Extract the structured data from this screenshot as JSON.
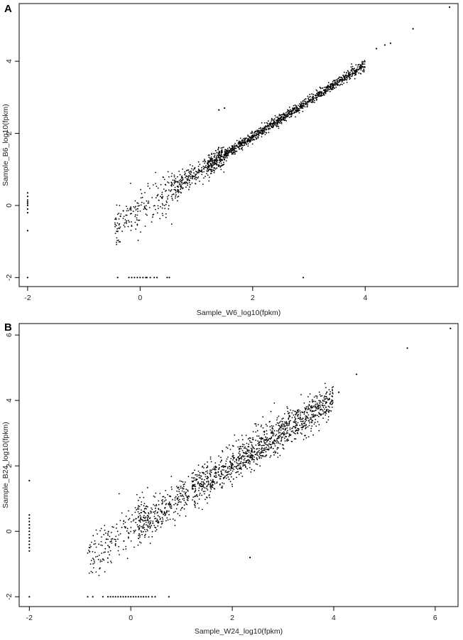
{
  "chart_data": [
    {
      "panel": "A",
      "type": "scatter",
      "title": "",
      "xlabel": "Sample_W6_log10(fpkm)",
      "ylabel": "Sample_B6_log10(fpkm)",
      "xlim": [
        -2.15,
        5.65
      ],
      "ylim": [
        -2.25,
        5.6
      ],
      "xticks": [
        -2,
        0,
        2,
        4
      ],
      "yticks": [
        -2,
        0,
        2,
        4
      ],
      "grid": false,
      "point_color": "#000000",
      "main_cloud": {
        "x_range": [
          -0.45,
          4.0
        ],
        "slope": 1.0,
        "intercept": -0.1,
        "spread": "narrow at high x, wider at low x",
        "approx_points": 1600
      },
      "points": [
        {
          "x": 5.5,
          "y": 5.5
        },
        {
          "x": 4.85,
          "y": 4.9
        },
        {
          "x": 4.45,
          "y": 4.5
        },
        {
          "x": 4.35,
          "y": 4.45
        },
        {
          "x": 4.2,
          "y": 4.35
        },
        {
          "x": 1.4,
          "y": 2.65
        },
        {
          "x": 1.5,
          "y": 2.7
        },
        {
          "x": -0.4,
          "y": -0.72
        },
        {
          "x": -0.35,
          "y": -0.3
        },
        {
          "x": -0.3,
          "y": -0.15
        },
        {
          "x": -2,
          "y": 0.35
        },
        {
          "x": -2,
          "y": 0.25
        },
        {
          "x": -2,
          "y": 0.15
        },
        {
          "x": -2,
          "y": 0.1
        },
        {
          "x": -2,
          "y": 0.05
        },
        {
          "x": -2,
          "y": 0.0
        },
        {
          "x": -2,
          "y": -0.1
        },
        {
          "x": -2,
          "y": -0.2
        },
        {
          "x": -2,
          "y": -0.7
        },
        {
          "x": -2,
          "y": -2
        },
        {
          "x": -0.4,
          "y": -2
        },
        {
          "x": -0.2,
          "y": -2
        },
        {
          "x": -0.15,
          "y": -2
        },
        {
          "x": -0.1,
          "y": -2
        },
        {
          "x": -0.05,
          "y": -2
        },
        {
          "x": 0.0,
          "y": -2
        },
        {
          "x": 0.05,
          "y": -2
        },
        {
          "x": 0.1,
          "y": -2
        },
        {
          "x": 0.12,
          "y": -2
        },
        {
          "x": 0.18,
          "y": -2
        },
        {
          "x": 0.25,
          "y": -2
        },
        {
          "x": 0.3,
          "y": -2
        },
        {
          "x": 0.48,
          "y": -2
        },
        {
          "x": 0.52,
          "y": -2
        },
        {
          "x": 2.9,
          "y": -2
        }
      ]
    },
    {
      "panel": "B",
      "type": "scatter",
      "title": "",
      "xlabel": "Sample_W24_log10(fpkm)",
      "ylabel": "Sample_B24_log10(fpkm)",
      "xlim": [
        -2.2,
        6.45
      ],
      "ylim": [
        -2.3,
        6.35
      ],
      "xticks": [
        -2,
        0,
        2,
        4,
        6
      ],
      "yticks": [
        -2,
        0,
        2,
        4,
        6
      ],
      "grid": false,
      "point_color": "#000000",
      "main_cloud": {
        "x_range": [
          -0.85,
          4.0
        ],
        "slope": 1.0,
        "intercept": 0.05,
        "spread": "wide, roughly uniform",
        "approx_points": 1600
      },
      "points": [
        {
          "x": 6.3,
          "y": 6.2
        },
        {
          "x": 5.45,
          "y": 5.6
        },
        {
          "x": 4.45,
          "y": 4.8
        },
        {
          "x": 4.1,
          "y": 4.25
        },
        {
          "x": 3.85,
          "y": 3.95
        },
        {
          "x": 2.35,
          "y": -0.8
        },
        {
          "x": -0.55,
          "y": -0.85
        },
        {
          "x": -2,
          "y": 1.55
        },
        {
          "x": -2,
          "y": 0.5
        },
        {
          "x": -2,
          "y": 0.4
        },
        {
          "x": -2,
          "y": 0.3
        },
        {
          "x": -2,
          "y": 0.2
        },
        {
          "x": -2,
          "y": 0.1
        },
        {
          "x": -2,
          "y": 0.0
        },
        {
          "x": -2,
          "y": -0.1
        },
        {
          "x": -2,
          "y": -0.2
        },
        {
          "x": -2,
          "y": -0.3
        },
        {
          "x": -2,
          "y": -0.4
        },
        {
          "x": -2,
          "y": -0.5
        },
        {
          "x": -2,
          "y": -0.6
        },
        {
          "x": -2,
          "y": -2
        },
        {
          "x": -0.85,
          "y": -2
        },
        {
          "x": -0.75,
          "y": -2
        },
        {
          "x": -0.55,
          "y": -2
        },
        {
          "x": -0.45,
          "y": -2
        },
        {
          "x": -0.4,
          "y": -2
        },
        {
          "x": -0.35,
          "y": -2
        },
        {
          "x": -0.3,
          "y": -2
        },
        {
          "x": -0.25,
          "y": -2
        },
        {
          "x": -0.2,
          "y": -2
        },
        {
          "x": -0.15,
          "y": -2
        },
        {
          "x": -0.1,
          "y": -2
        },
        {
          "x": -0.05,
          "y": -2
        },
        {
          "x": 0.0,
          "y": -2
        },
        {
          "x": 0.05,
          "y": -2
        },
        {
          "x": 0.1,
          "y": -2
        },
        {
          "x": 0.15,
          "y": -2
        },
        {
          "x": 0.2,
          "y": -2
        },
        {
          "x": 0.25,
          "y": -2
        },
        {
          "x": 0.3,
          "y": -2
        },
        {
          "x": 0.35,
          "y": -2
        },
        {
          "x": 0.42,
          "y": -2
        },
        {
          "x": 0.48,
          "y": -2
        },
        {
          "x": 0.75,
          "y": -2
        }
      ]
    }
  ],
  "panels": [
    {
      "letter": "A"
    },
    {
      "letter": "B"
    }
  ]
}
